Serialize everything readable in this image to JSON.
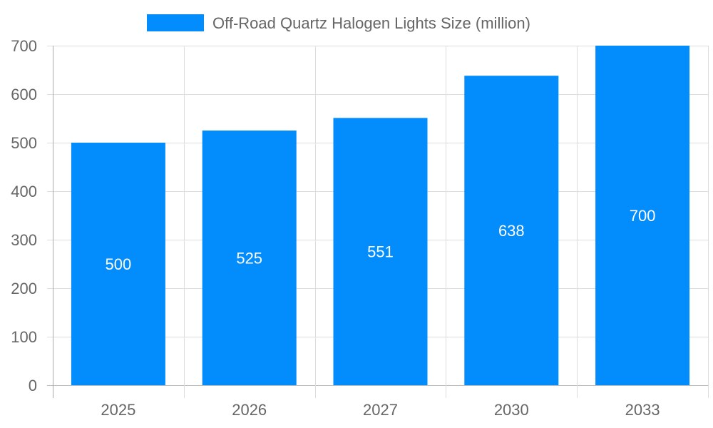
{
  "chart_data": {
    "type": "bar",
    "categories": [
      "2025",
      "2026",
      "2027",
      "2030",
      "2033"
    ],
    "series": [
      {
        "name": "Off-Road Quartz Halogen Lights Size (million)",
        "values": [
          500,
          525,
          551,
          638,
          700
        ],
        "color": "#038cfc"
      }
    ],
    "data_labels": [
      "500",
      "525",
      "551",
      "638",
      "700"
    ],
    "title": "",
    "xlabel": "",
    "ylabel": "",
    "ylim": [
      0,
      700
    ],
    "yticks": [
      "0",
      "100",
      "200",
      "300",
      "400",
      "500",
      "600",
      "700"
    ],
    "grid": true,
    "legend": "top"
  }
}
